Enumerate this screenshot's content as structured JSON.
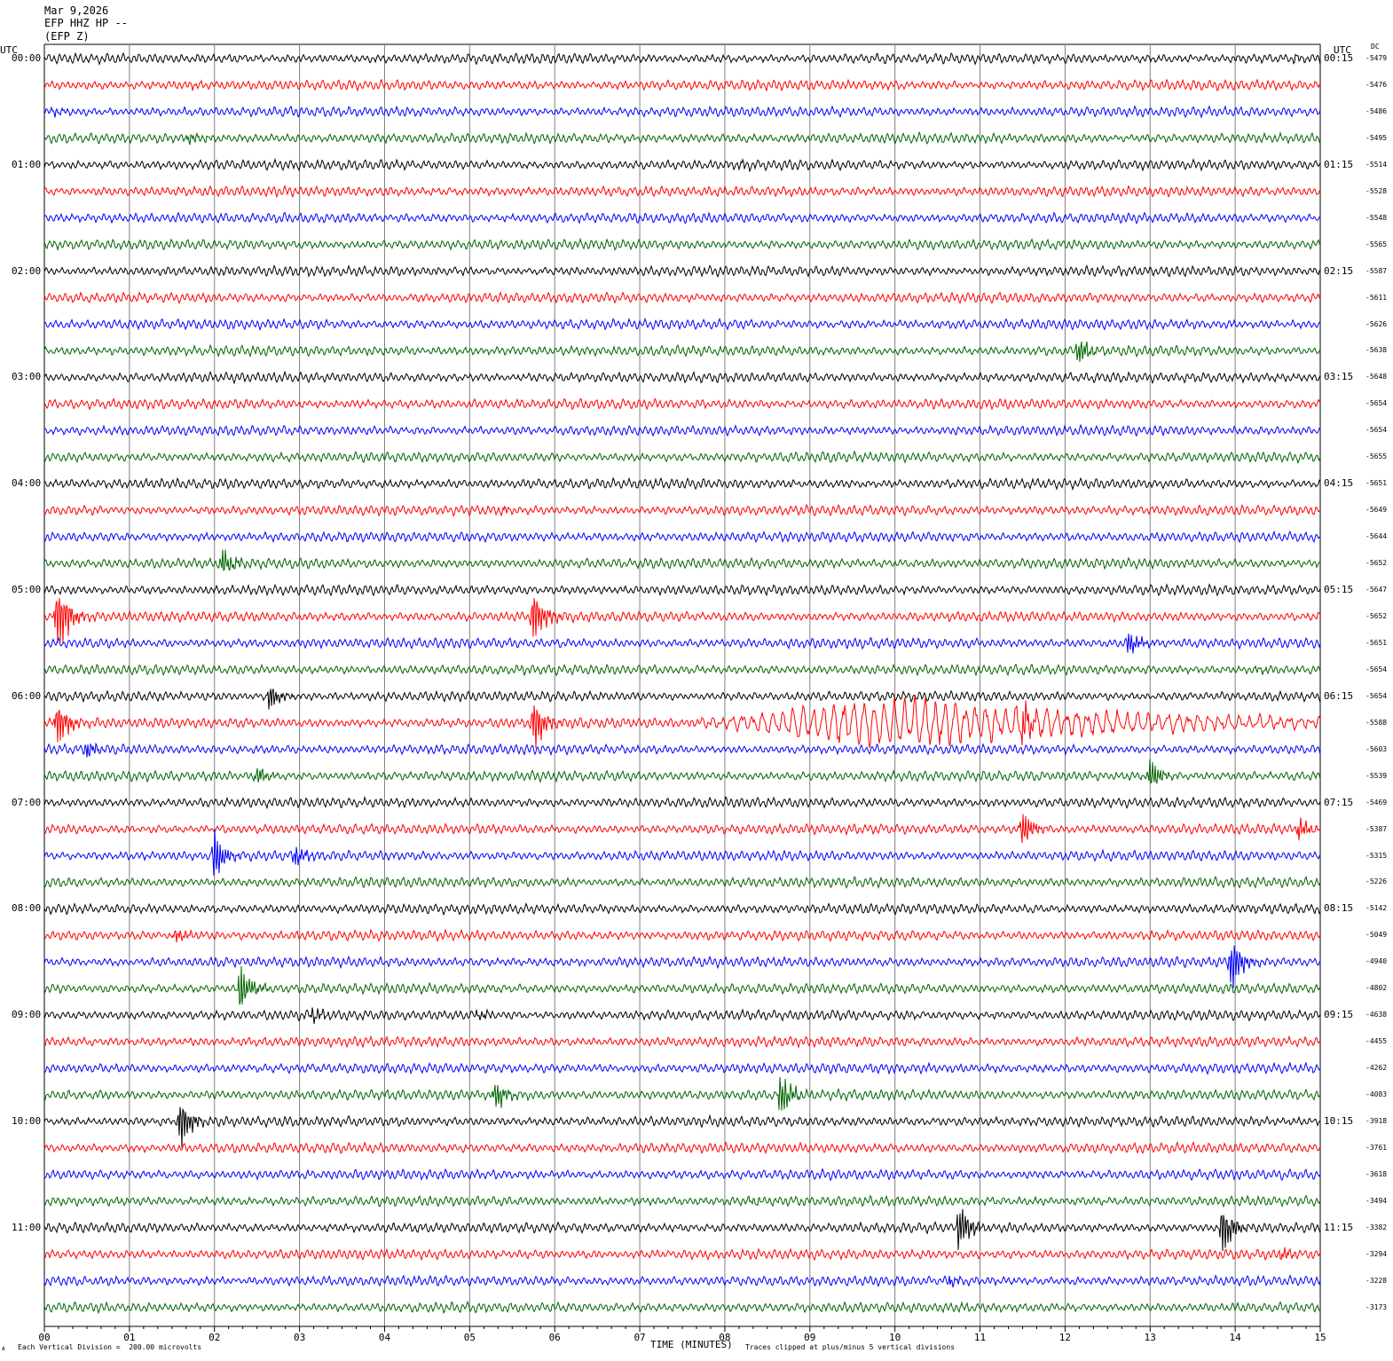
{
  "header": {
    "date": "Mar 9,2026",
    "station": "EFP HHZ HP --",
    "channel": "(EFP Z)"
  },
  "corner_labels": {
    "left_utc": "UTC",
    "right_utc": "UTC",
    "dc": "DC"
  },
  "footer": {
    "vertical_division": "Each Vertical Division =  200.00 microvolts",
    "clip_note": "Traces clipped at plus/minus 5 vertical divisions",
    "corner_mark": "A"
  },
  "chart_data": {
    "type": "line",
    "title": "",
    "xlabel": "TIME (MINUTES)",
    "ylabel": "",
    "xlim": [
      0,
      15
    ],
    "x_ticks": [
      "00",
      "01",
      "02",
      "03",
      "04",
      "05",
      "06",
      "07",
      "08",
      "09",
      "10",
      "11",
      "12",
      "13",
      "14",
      "15"
    ],
    "trace_colors": [
      "#000000",
      "#ff0000",
      "#0000ff",
      "#006400"
    ],
    "left_hour_labels": [
      "00:00",
      "01:00",
      "02:00",
      "03:00",
      "04:00",
      "05:00",
      "06:00",
      "07:00",
      "08:00",
      "09:00",
      "10:00",
      "11:00"
    ],
    "right_hour_labels": [
      "00:15",
      "01:15",
      "02:15",
      "03:15",
      "04:15",
      "05:15",
      "06:15",
      "07:15",
      "08:15",
      "09:15",
      "10:15",
      "11:15"
    ],
    "dc_offsets": [
      "-5479",
      "-5476",
      "-5486",
      "-5495",
      "-5514",
      "-5528",
      "-5548",
      "-5565",
      "-5587",
      "-5611",
      "-5626",
      "-5638",
      "-5648",
      "-5654",
      "-5654",
      "-5655",
      "-5651",
      "-5649",
      "-5644",
      "-5652",
      "-5647",
      "-5652",
      "-5651",
      "-5654",
      "-5654",
      "-5588",
      "-5603",
      "-5539",
      "-5469",
      "-5387",
      "-5315",
      "-5226",
      "-5142",
      "-5049",
      "-4940",
      "-4802",
      "-4638",
      "-4455",
      "-4262",
      "-4083",
      "-3918",
      "-3761",
      "-3618",
      "-3494",
      "-3382",
      "-3294",
      "-3228",
      "-3173"
    ],
    "events": [
      {
        "trace": 0,
        "minute": 14.7,
        "amp": 0.6
      },
      {
        "trace": 1,
        "minute": 1.75,
        "amp": 0.4
      },
      {
        "trace": 2,
        "minute": 0.1,
        "amp": 0.6
      },
      {
        "trace": 3,
        "minute": 1.7,
        "amp": 1.2
      },
      {
        "trace": 4,
        "minute": 8.2,
        "amp": 0.5
      },
      {
        "trace": 11,
        "minute": 12.15,
        "amp": 3.0
      },
      {
        "trace": 17,
        "minute": 5.4,
        "amp": 0.5
      },
      {
        "trace": 19,
        "minute": 2.1,
        "amp": 3.0
      },
      {
        "trace": 21,
        "minute": 0.15,
        "amp": 9.0
      },
      {
        "trace": 21,
        "minute": 5.75,
        "amp": 6.0
      },
      {
        "trace": 22,
        "minute": 12.75,
        "amp": 2.5
      },
      {
        "trace": 23,
        "minute": 14.25,
        "amp": 0.5
      },
      {
        "trace": 24,
        "minute": 2.65,
        "amp": 2.5
      },
      {
        "trace": 25,
        "minute": 0.15,
        "amp": 5.0
      },
      {
        "trace": 25,
        "minute": 5.75,
        "amp": 5.0
      },
      {
        "trace": 25,
        "minute": 11.5,
        "amp": 4.0
      },
      {
        "trace": 26,
        "minute": 0.5,
        "amp": 1.5
      },
      {
        "trace": 27,
        "minute": 2.5,
        "amp": 1.8
      },
      {
        "trace": 27,
        "minute": 13.0,
        "amp": 3.0
      },
      {
        "trace": 29,
        "minute": 11.5,
        "amp": 4.0
      },
      {
        "trace": 29,
        "minute": 14.75,
        "amp": 2.0
      },
      {
        "trace": 30,
        "minute": 2.0,
        "amp": 5.0
      },
      {
        "trace": 30,
        "minute": 2.95,
        "amp": 2.0
      },
      {
        "trace": 33,
        "minute": 1.55,
        "amp": 1.5
      },
      {
        "trace": 34,
        "minute": 13.95,
        "amp": 5.0
      },
      {
        "trace": 35,
        "minute": 2.3,
        "amp": 5.0
      },
      {
        "trace": 36,
        "minute": 3.15,
        "amp": 1.5
      },
      {
        "trace": 36,
        "minute": 5.1,
        "amp": 0.8
      },
      {
        "trace": 39,
        "minute": 5.3,
        "amp": 3.0
      },
      {
        "trace": 39,
        "minute": 8.65,
        "amp": 5.0
      },
      {
        "trace": 40,
        "minute": 1.6,
        "amp": 5.0
      },
      {
        "trace": 43,
        "minute": 8.3,
        "amp": 0.6
      },
      {
        "trace": 44,
        "minute": 10.75,
        "amp": 5.0
      },
      {
        "trace": 44,
        "minute": 13.85,
        "amp": 5.0
      },
      {
        "trace": 45,
        "minute": 14.55,
        "amp": 1.0
      },
      {
        "trace": 46,
        "minute": 10.65,
        "amp": 1.0
      }
    ],
    "teleseism": {
      "trace": 25,
      "start_minute": 7.5,
      "peak_minute": 9.9,
      "end_minute": 15.0,
      "amp": 5.0
    }
  }
}
